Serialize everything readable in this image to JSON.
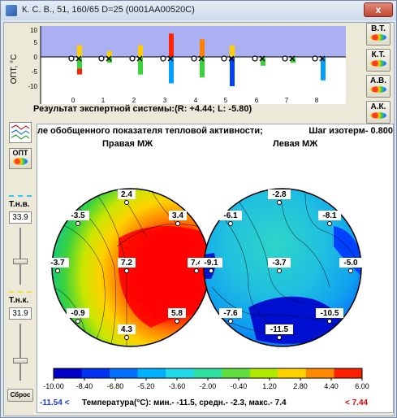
{
  "window": {
    "title": "К. С. В., 51, 160/65 D=25 (0001AA00520C)",
    "close_label": "x"
  },
  "top_chart": {
    "ylabel": "ОПТ, °С",
    "yticks": [
      "10",
      "5",
      "0",
      "-5",
      "-10"
    ],
    "xticks": [
      "0",
      "1",
      "2",
      "3",
      "4",
      "5",
      "6",
      "7",
      "8"
    ]
  },
  "expert": {
    "text": "Результат экспертной системы:(R: +4.44; L: -5.80)"
  },
  "side_buttons": [
    {
      "label": "В.Т."
    },
    {
      "label": "К.Т."
    },
    {
      "label": "А.В."
    },
    {
      "label": "А.К."
    }
  ],
  "left_panel": {
    "opt_label": "ОПТ",
    "tnv_label": "Т.н.в.",
    "tnv_value": "33.9",
    "tnk_label": "Т.н.к.",
    "tnk_value": "31.9",
    "reset_label": "Сброс"
  },
  "map": {
    "header": "ле обобщенного показателя тепловой активности;",
    "step": "Шаг изотерм- 0.800",
    "right_label": "Правая МЖ",
    "left_label": "Левая МЖ",
    "right_points": [
      {
        "label": "2.4"
      },
      {
        "label": "-3.5"
      },
      {
        "label": "3.4"
      },
      {
        "label": "-3.7"
      },
      {
        "label": "7.2"
      },
      {
        "label": "7.4"
      },
      {
        "label": "-0.9"
      },
      {
        "label": "5.8"
      },
      {
        "label": "4.3"
      }
    ],
    "left_points": [
      {
        "label": "-2.8"
      },
      {
        "label": "-6.1"
      },
      {
        "label": "-8.1"
      },
      {
        "label": "-9.1"
      },
      {
        "label": "-3.7"
      },
      {
        "label": "-5.0"
      },
      {
        "label": "-7.6"
      },
      {
        "label": "-10.5"
      },
      {
        "label": "-11.5"
      }
    ]
  },
  "colorbar": {
    "ticks": [
      "-10.00",
      "-8.40",
      "-6.80",
      "-5.20",
      "-3.60",
      "-2.00",
      "-0.40",
      "1.20",
      "2.80",
      "4.40",
      "6.00"
    ]
  },
  "stats": {
    "min_label": "-11.54 <",
    "text": "Температура(°С): мин.-  -11.5,  средн.-  -2.3,  макс.-   7.4",
    "max_label": "< 7.44"
  },
  "colors": {
    "band": "#aab0f2",
    "hot": "#ff0000",
    "cold": "#0000d0"
  }
}
